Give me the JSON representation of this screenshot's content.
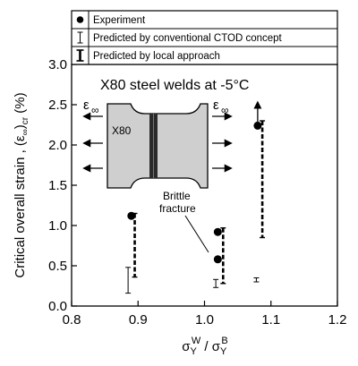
{
  "chart_data": {
    "type": "scatter",
    "title": "X80 steel welds at -5°C",
    "xlabel_parts": [
      "σ",
      "Y",
      "W",
      " / σ",
      "Y",
      "B"
    ],
    "ylabel_parts": [
      "Critical overall strain , (ε",
      "∞",
      ")",
      "cr",
      " (%)"
    ],
    "xlim": [
      0.8,
      1.2
    ],
    "ylim": [
      0.0,
      3.0
    ],
    "xticks": [
      0.8,
      0.9,
      1.0,
      1.1,
      1.2
    ],
    "yticks": [
      0.0,
      0.5,
      1.0,
      1.5,
      2.0,
      2.5,
      3.0
    ],
    "xtick_labels": [
      "0.8",
      "0.9",
      "1.0",
      "1.1",
      "1.2"
    ],
    "ytick_labels": [
      "0.0",
      "0.5",
      "1.0",
      "1.5",
      "2.0",
      "2.5",
      "3.0"
    ],
    "legend": {
      "placement": "top",
      "entries": [
        "Experiment",
        "Predicted by conventional CTOD concept",
        "Predicted by local approach"
      ]
    },
    "series": [
      {
        "name": "Experiment",
        "points": [
          {
            "x": 0.89,
            "y": 1.12,
            "arrow_up": false
          },
          {
            "x": 1.02,
            "y": 0.92,
            "arrow_up": false
          },
          {
            "x": 1.02,
            "y": 0.58,
            "arrow_up": false
          },
          {
            "x": 1.08,
            "y": 2.24,
            "arrow_up": true
          }
        ]
      },
      {
        "name": "Predicted by conventional CTOD concept",
        "ranges": [
          {
            "x": 0.885,
            "low": 0.16,
            "high": 0.48
          },
          {
            "x": 1.017,
            "low": 0.23,
            "high": 0.33
          },
          {
            "x": 1.078,
            "low": 0.3,
            "high": 0.35
          }
        ]
      },
      {
        "name": "Predicted by local approach",
        "ranges": [
          {
            "x": 0.895,
            "low": 0.36,
            "high": 1.15
          },
          {
            "x": 1.028,
            "low": 0.28,
            "high": 0.97
          },
          {
            "x": 1.087,
            "low": 0.85,
            "high": 2.3
          }
        ]
      }
    ],
    "annotations": {
      "specimen": "X80",
      "brittle": [
        "Brittle",
        "fracture"
      ],
      "epsilon": "ε",
      "infinity": "∞"
    }
  }
}
